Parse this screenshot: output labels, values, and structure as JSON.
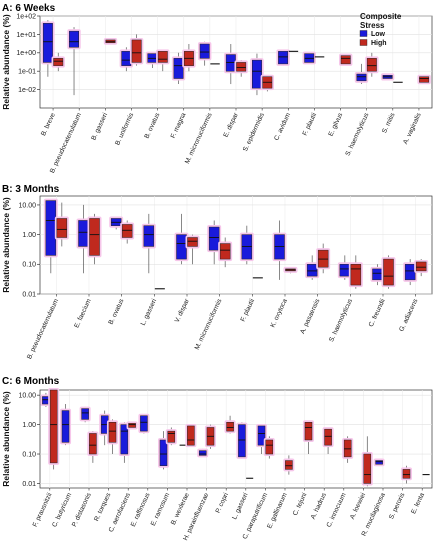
{
  "chart_data": [
    {
      "type": "box",
      "title": "A: 6 Weeks",
      "ylabel": "Relative abundance (%)",
      "yscale": "log",
      "ylim": [
        0.001,
        100
      ],
      "yticks": [
        0.01,
        0.1,
        1,
        10,
        100
      ],
      "ytick_labels": [
        "1e-02",
        "1e-01",
        "1e+00",
        "1e+01",
        "1e+02"
      ],
      "legend": {
        "title": "Composite Stress",
        "placement": "top-right",
        "entries": [
          "Low",
          "High"
        ]
      },
      "colors": {
        "Low": "#1a1adb",
        "High": "#c0291e",
        "halo": "#f6c6ea"
      },
      "categories": [
        "B. breve",
        "B. pseudocatenulatum",
        "B. gasseri",
        "B. uniformis",
        "B. ovatus",
        "F. magna",
        "M. micronuciformis",
        "E. dispar",
        "S. epidermidis",
        "C. avidum",
        "F. plautii",
        "E. gilvus",
        "S. haemolyticus",
        "S. mitis",
        "A. vaginalis"
      ],
      "series": [
        {
          "name": "Low",
          "values": [
            {
              "q1": 0.3,
              "median": 4,
              "q3": 40,
              "whisker_low": 0.05,
              "whisker_high": 60
            },
            {
              "q1": 2,
              "median": 4,
              "q3": 15,
              "whisker_low": 0.005,
              "whisker_high": 25
            },
            null,
            {
              "q1": 0.2,
              "median": 0.4,
              "q3": 1.2,
              "whisker_low": 0.1,
              "whisker_high": 2
            },
            {
              "q1": 0.3,
              "median": 0.5,
              "q3": 0.9,
              "whisker_low": 0.15,
              "whisker_high": 1
            },
            {
              "q1": 0.04,
              "median": 0.2,
              "q3": 0.5,
              "whisker_low": 0.02,
              "whisker_high": 1
            },
            {
              "q1": 0.5,
              "median": 1.1,
              "q3": 3,
              "whisker_low": 0.2,
              "whisker_high": 4
            },
            {
              "q1": 0.1,
              "median": 0.3,
              "q3": 0.8,
              "whisker_low": 0.02,
              "whisker_high": 3
            },
            {
              "q1": 0.012,
              "median": 0.1,
              "q3": 0.4,
              "whisker_low": 0.005,
              "whisker_high": 0.9
            },
            {
              "q1": 0.25,
              "median": 0.6,
              "q3": 1.2,
              "whisker_low": 0.2,
              "whisker_high": 1.2
            },
            {
              "q1": 0.3,
              "median": 0.5,
              "q3": 0.9,
              "whisker_low": 0.3,
              "whisker_high": 0.9
            },
            null,
            {
              "q1": 0.03,
              "median": 0.05,
              "q3": 0.07,
              "whisker_low": 0.02,
              "whisker_high": 0.25
            },
            {
              "q1": 0.04,
              "median": 0.05,
              "q3": 0.06,
              "whisker_low": 0.04,
              "whisker_high": 0.06
            },
            null
          ]
        },
        {
          "name": "High",
          "values": [
            {
              "q1": 0.2,
              "median": 0.35,
              "q3": 0.5,
              "whisker_low": 0.1,
              "whisker_high": 1
            },
            null,
            {
              "q1": 3.5,
              "median": 4,
              "q3": 5,
              "whisker_low": 3,
              "whisker_high": 6
            },
            {
              "q1": 0.3,
              "median": 1,
              "q3": 5,
              "whisker_low": 0.2,
              "whisker_high": 10
            },
            {
              "q1": 0.3,
              "median": 0.45,
              "q3": 1.2,
              "whisker_low": 0.1,
              "whisker_high": 1.5
            },
            {
              "q1": 0.2,
              "median": 0.5,
              "q3": 1.2,
              "whisker_low": 0.1,
              "whisker_high": 3
            },
            {
              "q1": 0.25,
              "median": 0.25,
              "q3": 0.25,
              "whisker_low": 0.25,
              "whisker_high": 0.25
            },
            {
              "q1": 0.1,
              "median": 0.16,
              "q3": 0.3,
              "whisker_low": 0.05,
              "whisker_high": 0.4
            },
            {
              "q1": 0.012,
              "median": 0.025,
              "q3": 0.05,
              "whisker_low": 0.008,
              "whisker_high": 0.06
            },
            {
              "q1": 1.2,
              "median": 1.2,
              "q3": 1.2,
              "whisker_low": 1.2,
              "whisker_high": 1.2
            },
            {
              "q1": 0.6,
              "median": 0.6,
              "q3": 0.6,
              "whisker_low": 0.6,
              "whisker_high": 0.6
            },
            {
              "q1": 0.25,
              "median": 0.5,
              "q3": 0.7,
              "whisker_low": 0.25,
              "whisker_high": 0.7
            },
            {
              "q1": 0.1,
              "median": 0.2,
              "q3": 0.5,
              "whisker_low": 0.05,
              "whisker_high": 1
            },
            {
              "q1": 0.025,
              "median": 0.025,
              "q3": 0.025,
              "whisker_low": 0.025,
              "whisker_high": 0.025
            },
            {
              "q1": 0.025,
              "median": 0.04,
              "q3": 0.05,
              "whisker_low": 0.02,
              "whisker_high": 0.06
            }
          ]
        }
      ]
    },
    {
      "type": "box",
      "title": "B: 3 Months",
      "ylabel": "Relative abundance (%)",
      "yscale": "log",
      "ylim": [
        0.01,
        20
      ],
      "yticks": [
        0.01,
        0.1,
        1,
        10
      ],
      "ytick_labels": [
        "0.01",
        "0.10",
        "1.00",
        "10.00"
      ],
      "categories": [
        "B. pseudocatenulatum",
        "E. faecium",
        "B. ovatus",
        "L. gasseri",
        "V. dispar",
        "M. micronuciformis",
        "F. plautii",
        "K. oxytoca",
        "A. pasaensis",
        "S. haemolyticus",
        "C. freundii",
        "G. adiacens"
      ],
      "series": [
        {
          "name": "Low",
          "values": [
            {
              "q1": 0.2,
              "median": 3,
              "q3": 14,
              "whisker_low": 0.05,
              "whisker_high": 15
            },
            {
              "q1": 0.4,
              "median": 1.2,
              "q3": 3,
              "whisker_low": 0.05,
              "whisker_high": 10
            },
            {
              "q1": 2,
              "median": 2.6,
              "q3": 3.5,
              "whisker_low": 1.5,
              "whisker_high": 4
            },
            {
              "q1": 0.4,
              "median": 1,
              "q3": 2,
              "whisker_low": 0.05,
              "whisker_high": 5
            },
            {
              "q1": 0.15,
              "median": 0.5,
              "q3": 1,
              "whisker_low": 0.1,
              "whisker_high": 5
            },
            {
              "q1": 0.3,
              "median": 0.8,
              "q3": 1.8,
              "whisker_low": 0.1,
              "whisker_high": 3
            },
            {
              "q1": 0.15,
              "median": 0.4,
              "q3": 1,
              "whisker_low": 0.1,
              "whisker_high": 2
            },
            {
              "q1": 0.15,
              "median": 0.4,
              "q3": 1,
              "whisker_low": 0.03,
              "whisker_high": 3
            },
            {
              "q1": 0.04,
              "median": 0.06,
              "q3": 0.1,
              "whisker_low": 0.03,
              "whisker_high": 0.2
            },
            {
              "q1": 0.04,
              "median": 0.07,
              "q3": 0.1,
              "whisker_low": 0.03,
              "whisker_high": 0.2
            },
            {
              "q1": 0.03,
              "median": 0.05,
              "q3": 0.07,
              "whisker_low": 0.02,
              "whisker_high": 0.1
            },
            {
              "q1": 0.03,
              "median": 0.06,
              "q3": 0.1,
              "whisker_low": 0.02,
              "whisker_high": 0.15
            }
          ]
        },
        {
          "name": "High",
          "values": [
            {
              "q1": 0.8,
              "median": 1.5,
              "q3": 3.5,
              "whisker_low": 0.4,
              "whisker_high": 12
            },
            {
              "q1": 0.2,
              "median": 1,
              "q3": 3.5,
              "whisker_low": 0.1,
              "whisker_high": 5
            },
            {
              "q1": 0.8,
              "median": 1.4,
              "q3": 2.2,
              "whisker_low": 0.5,
              "whisker_high": 3
            },
            {
              "q1": 0.015,
              "median": 0.015,
              "q3": 0.015,
              "whisker_low": 0.015,
              "whisker_high": 0.015
            },
            {
              "q1": 0.4,
              "median": 0.6,
              "q3": 0.8,
              "whisker_low": 0.1,
              "whisker_high": 1
            },
            {
              "q1": 0.15,
              "median": 0.3,
              "q3": 0.5,
              "whisker_low": 0.08,
              "whisker_high": 0.8
            },
            {
              "q1": 0.035,
              "median": 0.035,
              "q3": 0.035,
              "whisker_low": 0.035,
              "whisker_high": 0.035
            },
            {
              "q1": 0.06,
              "median": 0.065,
              "q3": 0.07,
              "whisker_low": 0.05,
              "whisker_high": 0.08
            },
            {
              "q1": 0.08,
              "median": 0.15,
              "q3": 0.3,
              "whisker_low": 0.05,
              "whisker_high": 0.5
            },
            {
              "q1": 0.02,
              "median": 0.07,
              "q3": 0.1,
              "whisker_low": 0.015,
              "whisker_high": 0.2
            },
            {
              "q1": 0.02,
              "median": 0.04,
              "q3": 0.15,
              "whisker_low": 0.015,
              "whisker_high": 0.2
            },
            {
              "q1": 0.06,
              "median": 0.08,
              "q3": 0.12,
              "whisker_low": 0.04,
              "whisker_high": 0.15
            }
          ]
        }
      ]
    },
    {
      "type": "box",
      "title": "C: 6 Months",
      "ylabel": "Relative abundance (%)",
      "yscale": "log",
      "ylim": [
        0.007,
        15
      ],
      "yticks": [
        0.01,
        0.1,
        1,
        10
      ],
      "ytick_labels": [
        "0.01",
        "0.10",
        "1.00",
        "10.00"
      ],
      "categories": [
        "F. prausnitzii",
        "C. butyricum",
        "P. distasonis",
        "R. torques",
        "C. aerofaciens",
        "E. raffinosus",
        "E. ramosum",
        "B. wexlerae",
        "H. parainfluenzae",
        "P. copri",
        "L. gasseri",
        "C. paraputrificum",
        "E. gallinarum",
        "C. tejuni",
        "A. hadrus",
        "C. innocuum",
        "A. loewiei",
        "R. mucilaginosa",
        "S. peroris",
        "E. lenta"
      ],
      "series": [
        {
          "name": "Low",
          "values": [
            {
              "q1": 5,
              "median": 7,
              "q3": 9,
              "whisker_low": 4,
              "whisker_high": 12
            },
            {
              "q1": 0.25,
              "median": 1,
              "q3": 3,
              "whisker_low": 0.2,
              "whisker_high": 5
            },
            {
              "q1": 1.5,
              "median": 2.5,
              "q3": 3.5,
              "whisker_low": 1.2,
              "whisker_high": 4
            },
            {
              "q1": 0.5,
              "median": 1,
              "q3": 2,
              "whisker_low": 0.2,
              "whisker_high": 3
            },
            {
              "q1": 0.1,
              "median": 0.6,
              "q3": 1,
              "whisker_low": 0.05,
              "whisker_high": 1.2
            },
            {
              "q1": 0.6,
              "median": 1.2,
              "q3": 2,
              "whisker_low": 0.5,
              "whisker_high": 2.2
            },
            {
              "q1": 0.04,
              "median": 0.1,
              "q3": 0.3,
              "whisker_low": 0.03,
              "whisker_high": 0.6
            },
            {
              "q1": 0.2,
              "median": 0.2,
              "q3": 0.2,
              "whisker_low": 0.2,
              "whisker_high": 0.2
            },
            {
              "q1": 0.09,
              "median": 0.1,
              "q3": 0.13,
              "whisker_low": 0.08,
              "whisker_high": 0.15
            },
            null,
            {
              "q1": 0.08,
              "median": 0.3,
              "q3": 1,
              "whisker_low": 0.07,
              "whisker_high": 1.2
            },
            {
              "q1": 0.2,
              "median": 0.5,
              "q3": 0.9,
              "whisker_low": 0.1,
              "whisker_high": 1
            },
            null,
            null,
            null,
            null,
            null,
            {
              "q1": 0.045,
              "median": 0.055,
              "q3": 0.06,
              "whisker_low": 0.04,
              "whisker_high": 0.07
            },
            null,
            null
          ]
        },
        {
          "name": "High",
          "values": [
            {
              "q1": 0.05,
              "median": 1,
              "q3": 15,
              "whisker_low": 0.03,
              "whisker_high": 15
            },
            null,
            {
              "q1": 0.1,
              "median": 0.2,
              "q3": 0.5,
              "whisker_low": 0.05,
              "whisker_high": 0.6
            },
            {
              "q1": 0.25,
              "median": 0.6,
              "q3": 1.2,
              "whisker_low": 0.1,
              "whisker_high": 1.5
            },
            {
              "q1": 0.8,
              "median": 1,
              "q3": 1.1,
              "whisker_low": 0.7,
              "whisker_high": 1.2
            },
            null,
            {
              "q1": 0.25,
              "median": 0.5,
              "q3": 0.6,
              "whisker_low": 0.2,
              "whisker_high": 0.8
            },
            {
              "q1": 0.2,
              "median": 0.3,
              "q3": 0.9,
              "whisker_low": 0.2,
              "whisker_high": 0.9
            },
            {
              "q1": 0.2,
              "median": 0.4,
              "q3": 0.8,
              "whisker_low": 0.15,
              "whisker_high": 1
            },
            {
              "q1": 0.6,
              "median": 0.8,
              "q3": 1.2,
              "whisker_low": 0.5,
              "whisker_high": 2
            },
            {
              "q1": 0.015,
              "median": 0.015,
              "q3": 0.015,
              "whisker_low": 0.015,
              "whisker_high": 0.015
            },
            {
              "q1": 0.1,
              "median": 0.2,
              "q3": 0.3,
              "whisker_low": 0.07,
              "whisker_high": 0.4
            },
            {
              "q1": 0.03,
              "median": 0.04,
              "q3": 0.06,
              "whisker_low": 0.02,
              "whisker_high": 0.09
            },
            {
              "q1": 0.3,
              "median": 0.8,
              "q3": 1.2,
              "whisker_low": 0.1,
              "whisker_high": 1.3
            },
            {
              "q1": 0.2,
              "median": 0.4,
              "q3": 0.7,
              "whisker_low": 0.1,
              "whisker_high": 0.8
            },
            {
              "q1": 0.08,
              "median": 0.15,
              "q3": 0.3,
              "whisker_low": 0.05,
              "whisker_high": 0.4
            },
            {
              "q1": 0.01,
              "median": 0.02,
              "q3": 0.1,
              "whisker_low": 0.008,
              "whisker_high": 0.4
            },
            null,
            {
              "q1": 0.015,
              "median": 0.02,
              "q3": 0.03,
              "whisker_low": 0.01,
              "whisker_high": 0.04
            },
            {
              "q1": 0.02,
              "median": 0.02,
              "q3": 0.02,
              "whisker_low": 0.02,
              "whisker_high": 0.02
            }
          ]
        }
      ]
    }
  ]
}
